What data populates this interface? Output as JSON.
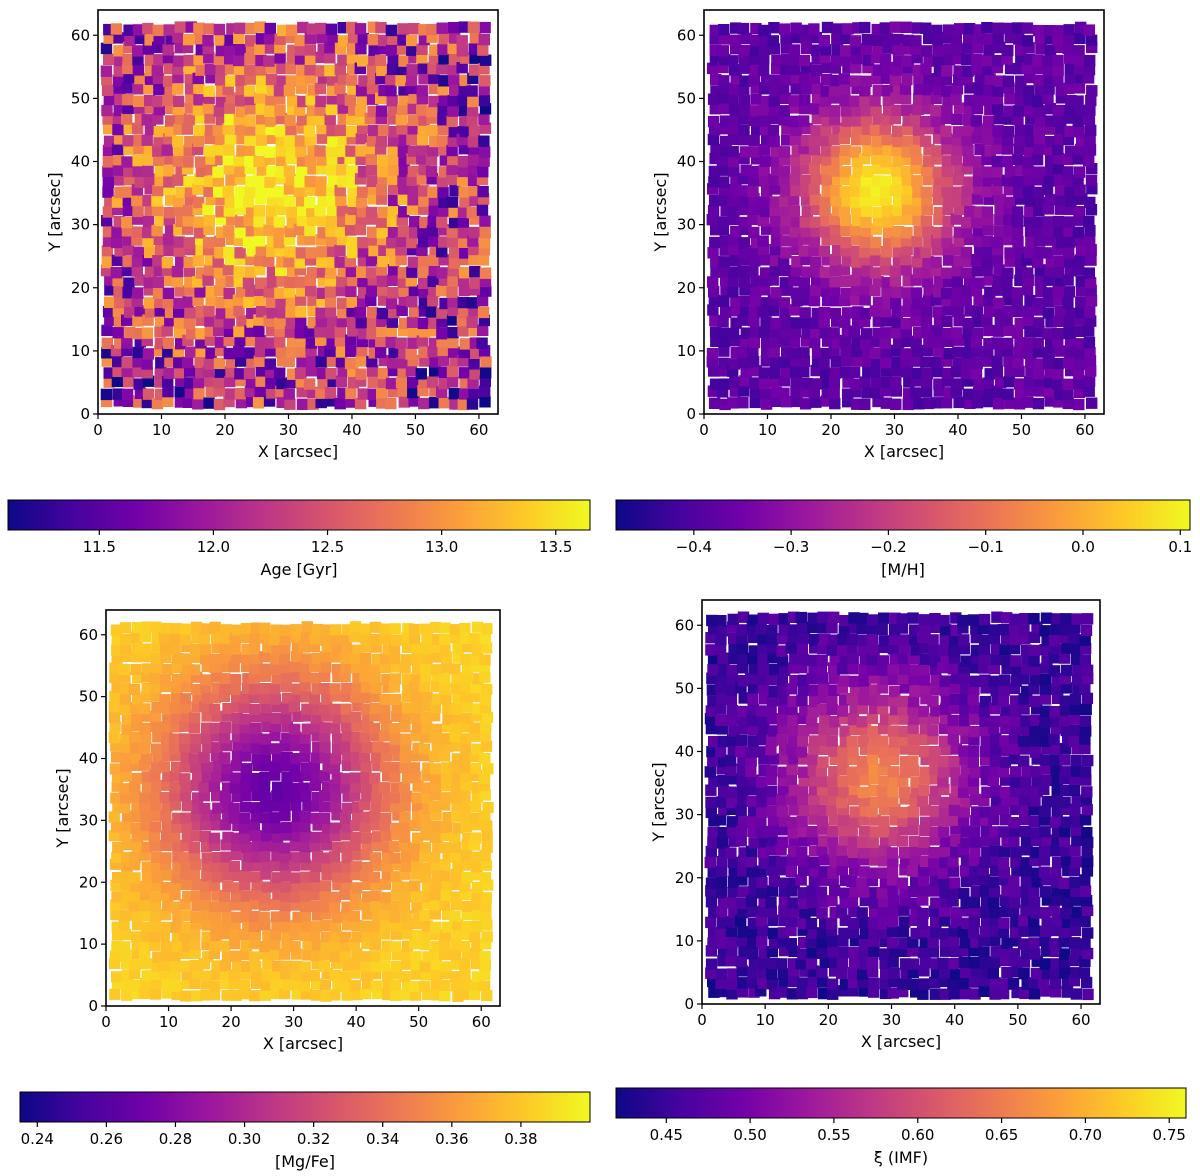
{
  "figure": {
    "colormap": "plasma",
    "colormap_stops": [
      "#0d0887",
      "#46039f",
      "#7201a8",
      "#9c179e",
      "#bd3786",
      "#d8576b",
      "#ed7953",
      "#fb9f3a",
      "#fdca26",
      "#f0f921"
    ],
    "axis_color": "#000000"
  },
  "chart_data": [
    {
      "type": "heatmap",
      "description_key": "age",
      "xlabel": "X [arcsec]",
      "ylabel": "Y [arcsec]",
      "xlim": [
        0,
        63
      ],
      "ylim": [
        0,
        64
      ],
      "xticks": [
        "0",
        "10",
        "20",
        "30",
        "40",
        "50",
        "60"
      ],
      "yticks": [
        "0",
        "10",
        "20",
        "30",
        "40",
        "50",
        "60"
      ],
      "colorbar": {
        "label": "Age [Gyr]",
        "range": [
          11.1,
          13.65
        ],
        "ticks": [
          "11.5",
          "12.0",
          "12.5",
          "13.0",
          "13.5"
        ],
        "tick_values": [
          11.5,
          12.0,
          12.5,
          13.0,
          13.5
        ]
      },
      "map": {
        "center": [
          27,
          36
        ],
        "center_value": 13.5,
        "edge_value": 12.0,
        "scale_arcsec": 20,
        "noise": 0.55
      }
    },
    {
      "type": "heatmap",
      "description_key": "metallicity",
      "xlabel": "X [arcsec]",
      "ylabel": "Y [arcsec]",
      "xlim": [
        0,
        63
      ],
      "ylim": [
        0,
        64
      ],
      "xticks": [
        "0",
        "10",
        "20",
        "30",
        "40",
        "50",
        "60"
      ],
      "yticks": [
        "0",
        "10",
        "20",
        "30",
        "40",
        "50",
        "60"
      ],
      "colorbar": {
        "label": "[M/H]",
        "range": [
          -0.48,
          0.11
        ],
        "ticks": [
          "−0.4",
          "−0.3",
          "−0.2",
          "−0.1",
          "0.0",
          "0.1"
        ],
        "tick_values": [
          -0.4,
          -0.3,
          -0.2,
          -0.1,
          0.0,
          0.1
        ]
      },
      "map": {
        "center": [
          27.5,
          35.5
        ],
        "center_value": 0.1,
        "edge_value": -0.38,
        "scale_arcsec": 12,
        "noise": 0.1
      }
    },
    {
      "type": "heatmap",
      "description_key": "alpha",
      "xlabel": "X [arcsec]",
      "ylabel": "Y [arcsec]",
      "xlim": [
        0,
        63
      ],
      "ylim": [
        0,
        64
      ],
      "xticks": [
        "0",
        "10",
        "20",
        "30",
        "40",
        "50",
        "60"
      ],
      "yticks": [
        "0",
        "10",
        "20",
        "30",
        "40",
        "50",
        "60"
      ],
      "colorbar": {
        "label": "[Mg/Fe]",
        "range": [
          0.235,
          0.4
        ],
        "ticks": [
          "0.24",
          "0.26",
          "0.28",
          "0.30",
          "0.32",
          "0.34",
          "0.36",
          "0.38"
        ],
        "tick_values": [
          0.24,
          0.26,
          0.28,
          0.3,
          0.32,
          0.34,
          0.36,
          0.38
        ]
      },
      "map": {
        "center": [
          27,
          35
        ],
        "center_value": 0.265,
        "edge_value": 0.385,
        "scale_arcsec": 18,
        "noise": 0.045
      }
    },
    {
      "type": "heatmap",
      "description_key": "imf",
      "xlabel": "X [arcsec]",
      "ylabel": "Y [arcsec]",
      "xlim": [
        0,
        63
      ],
      "ylim": [
        0,
        64
      ],
      "xticks": [
        "0",
        "10",
        "20",
        "30",
        "40",
        "50",
        "60"
      ],
      "yticks": [
        "0",
        "10",
        "20",
        "30",
        "40",
        "50",
        "60"
      ],
      "colorbar": {
        "label": "ξ (IMF)",
        "range": [
          0.42,
          0.76
        ],
        "ticks": [
          "0.45",
          "0.50",
          "0.55",
          "0.60",
          "0.65",
          "0.70",
          "0.75"
        ],
        "tick_values": [
          0.45,
          0.5,
          0.55,
          0.6,
          0.65,
          0.7,
          0.75
        ]
      },
      "map": {
        "center": [
          28,
          36
        ],
        "center_value": 0.66,
        "edge_value": 0.45,
        "scale_arcsec": 14,
        "noise": 0.12
      }
    }
  ]
}
